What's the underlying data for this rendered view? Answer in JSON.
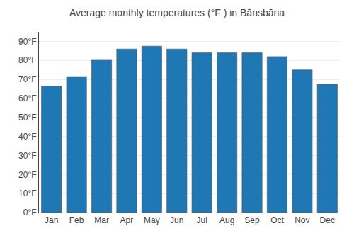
{
  "chart_data": {
    "type": "bar",
    "title": "Average monthly temperatures (°F ) in Bānsbāria",
    "categories": [
      "Jan",
      "Feb",
      "Mar",
      "Apr",
      "May",
      "Jun",
      "Jul",
      "Aug",
      "Sep",
      "Oct",
      "Nov",
      "Dec"
    ],
    "values": [
      66.5,
      71.5,
      80.5,
      86.0,
      87.5,
      86.0,
      84.0,
      84.0,
      84.0,
      82.0,
      75.0,
      67.5
    ],
    "ylim": [
      0,
      95
    ],
    "yticks": [
      {
        "value": 0,
        "label": "0°F"
      },
      {
        "value": 10,
        "label": "10°F"
      },
      {
        "value": 20,
        "label": "20°F"
      },
      {
        "value": 30,
        "label": "30°F"
      },
      {
        "value": 40,
        "label": "40°F"
      },
      {
        "value": 50,
        "label": "50°F"
      },
      {
        "value": 60,
        "label": "60°F"
      },
      {
        "value": 70,
        "label": "70°F"
      },
      {
        "value": 80,
        "label": "80°F"
      },
      {
        "value": 90,
        "label": "90°F"
      }
    ],
    "grid": true
  }
}
